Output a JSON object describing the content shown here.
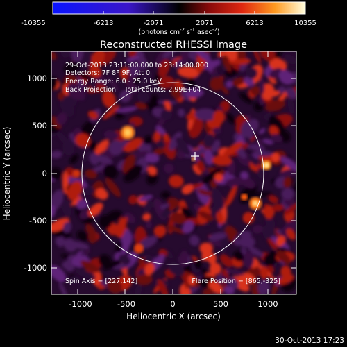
{
  "colorbar": {
    "ticks": [
      "-10355",
      "-6213",
      "-2071",
      "2071",
      "6213",
      "10355"
    ],
    "unit_main": "(photons cm",
    "unit_exp1": "-2",
    "unit_mid": " s",
    "unit_exp2": "-1",
    "unit_end": " asec",
    "unit_exp3": "-2",
    "unit_close": ")"
  },
  "image": {
    "title": "Reconstructed RHESSI Image",
    "info_lines": [
      "29-Oct-2013 23:11:00.000 to 23:14:00.000",
      "Detectors: 7F 8F 9F, Att 0",
      "Energy Range: 6.0 - 25.0 keV",
      "Back Projection    Total counts: 2.99E+04"
    ],
    "spin_axis": "Spin Axis = [227,142]",
    "flare_position": "Flare Position = [865,-325]",
    "xlabel": "Heliocentric X (arcsec)",
    "ylabel": "Heliocentric Y (arcsec)",
    "xticks": [
      "-1000",
      "-500",
      "0",
      "500",
      "1000"
    ],
    "yticks": [
      "1000",
      "500",
      "0",
      "-500",
      "-1000"
    ],
    "timestamp": "30-Oct-2013 17:23"
  },
  "colors": {
    "background": "#000000",
    "frame": "#ffffff"
  }
}
